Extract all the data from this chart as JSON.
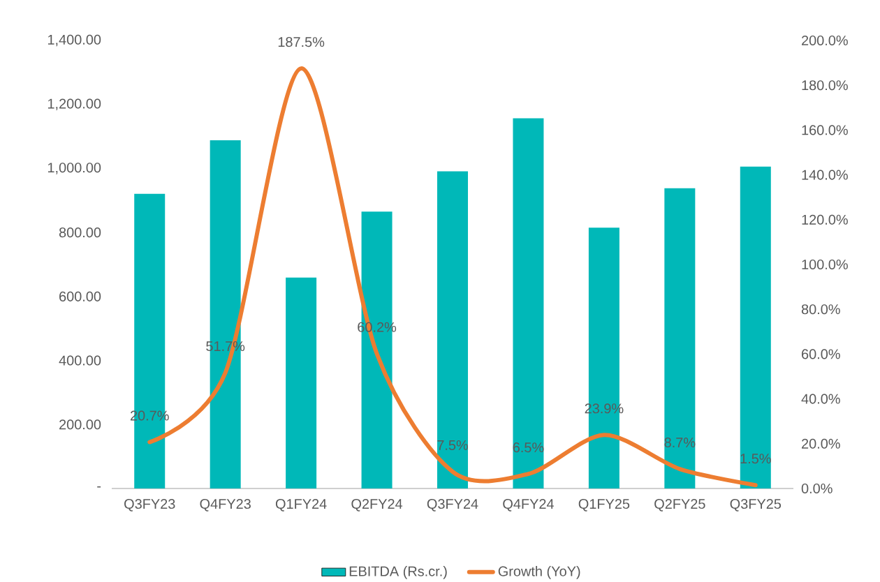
{
  "chart_data": {
    "type": "bar",
    "categories": [
      "Q3FY23",
      "Q4FY23",
      "Q1FY24",
      "Q2FY24",
      "Q3FY24",
      "Q4FY24",
      "Q1FY25",
      "Q2FY25",
      "Q3FY25"
    ],
    "series": [
      {
        "name": "EBITDA (Rs.cr.)",
        "color": "#00b8b8",
        "values": [
          921,
          1088,
          659,
          865,
          991,
          1157,
          815,
          938,
          1006
        ]
      },
      {
        "name": "Growth (YoY)",
        "type": "line",
        "axis": "y2",
        "color": "#ed7d31",
        "values": [
          20.7,
          51.7,
          187.5,
          60.2,
          7.5,
          6.5,
          23.9,
          8.7,
          1.5
        ],
        "value_labels": [
          "20.7%",
          "51.7%",
          "187.5%",
          "60.2%",
          "7.5%",
          "6.5%",
          "23.9%",
          "8.7%",
          "1.5%"
        ]
      }
    ],
    "ylim": [
      0,
      1400
    ],
    "yticks": [
      {
        "value": 0,
        "label": "-"
      },
      {
        "value": 200,
        "label": "200.00"
      },
      {
        "value": 400,
        "label": "400.00"
      },
      {
        "value": 600,
        "label": "600.00"
      },
      {
        "value": 800,
        "label": "800.00"
      },
      {
        "value": 1000,
        "label": "1,000.00"
      },
      {
        "value": 1200,
        "label": "1,200.00"
      },
      {
        "value": 1400,
        "label": "1,400.00"
      }
    ],
    "y2lim": [
      0,
      200
    ],
    "y2ticks": [
      {
        "value": 0,
        "label": "0.0%"
      },
      {
        "value": 20,
        "label": "20.0%"
      },
      {
        "value": 40,
        "label": "40.0%"
      },
      {
        "value": 60,
        "label": "60.0%"
      },
      {
        "value": 80,
        "label": "80.0%"
      },
      {
        "value": 100,
        "label": "100.0%"
      },
      {
        "value": 120,
        "label": "120.0%"
      },
      {
        "value": 140,
        "label": "140.0%"
      },
      {
        "value": 160,
        "label": "160.0%"
      },
      {
        "value": 180,
        "label": "180.0%"
      },
      {
        "value": 200,
        "label": "200.0%"
      }
    ],
    "legend": "bottom",
    "grid": false
  }
}
